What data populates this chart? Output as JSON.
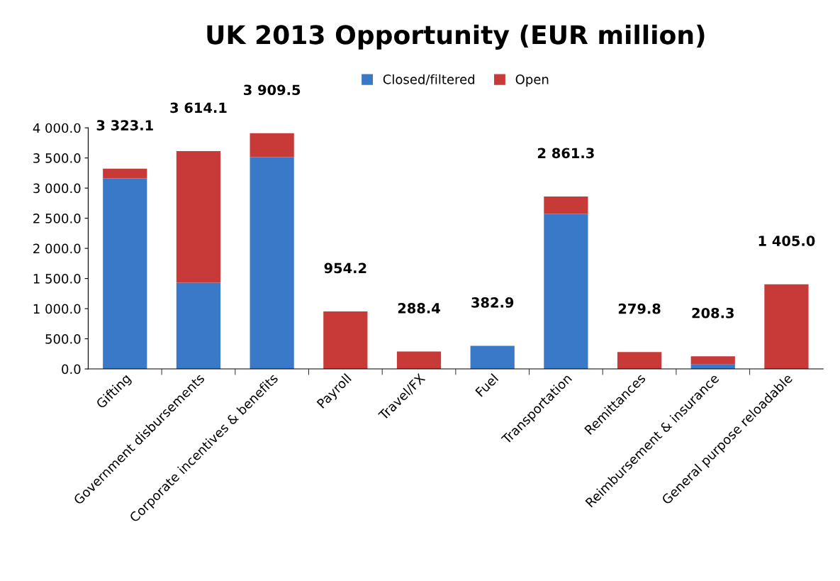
{
  "chart_data": {
    "type": "bar",
    "title": "UK 2013 Opportunity (EUR million)",
    "stacked": true,
    "categories": [
      "Gifting",
      "Government disbursements",
      "Corporate incentives & benefits",
      "Payroll",
      "Travel/FX",
      "Fuel",
      "Transportation",
      "Remittances",
      "Reimbursement & insurance",
      "General purpose reloadable"
    ],
    "series": [
      {
        "name": "Closed/filtered",
        "color": "#3a78c8",
        "values": [
          3162,
          1431,
          3513,
          0,
          0,
          382.9,
          2571,
          0,
          75,
          0
        ]
      },
      {
        "name": "Open",
        "color": "#c83a38",
        "values": [
          161.1,
          2183.1,
          396.5,
          954.2,
          288.4,
          0,
          290.3,
          279.8,
          133.3,
          1405.0
        ]
      }
    ],
    "totals": [
      "3 323.1",
      "3 614.1",
      "3 909.5",
      "954.2",
      "288.4",
      "382.9",
      "2 861.3",
      "279.8",
      "208.3",
      "1 405.0"
    ],
    "ylim": [
      0,
      4000
    ],
    "yticks": [
      {
        "value": 0,
        "label": "0.0"
      },
      {
        "value": 500,
        "label": "500.0"
      },
      {
        "value": 1000,
        "label": "1 000.0"
      },
      {
        "value": 1500,
        "label": "1 500.0"
      },
      {
        "value": 2000,
        "label": "2 000.0"
      },
      {
        "value": 2500,
        "label": "2 500.0"
      },
      {
        "value": 3000,
        "label": "3 000.0"
      },
      {
        "value": 3500,
        "label": "3 500.0"
      },
      {
        "value": 4000,
        "label": "4 000.0"
      }
    ],
    "grid": false,
    "legend": "top"
  }
}
